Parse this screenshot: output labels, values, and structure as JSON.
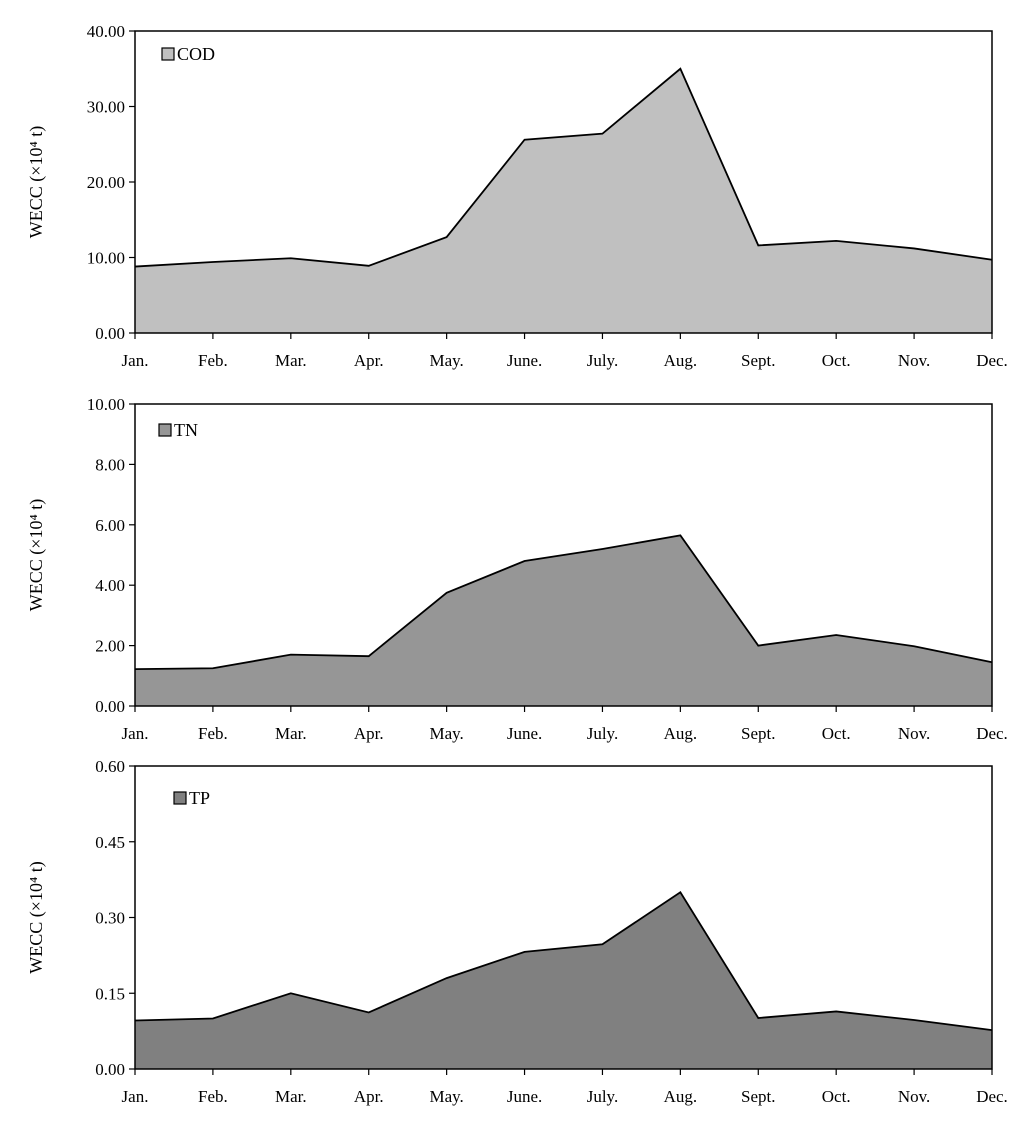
{
  "chart_data": [
    {
      "type": "area",
      "categories": [
        "Jan.",
        "Feb.",
        "Mar.",
        "Apr.",
        "May.",
        "June.",
        "July.",
        "Aug.",
        "Sept.",
        "Oct.",
        "Nov.",
        "Dec."
      ],
      "series": [
        {
          "name": "COD",
          "values": [
            8.8,
            9.4,
            9.9,
            8.9,
            12.7,
            25.6,
            26.4,
            35.0,
            11.6,
            12.2,
            11.2,
            9.7
          ],
          "color": "#c0c0c0"
        }
      ],
      "ylabel": "WECC (×10⁴ t)",
      "ylim": [
        0,
        40
      ],
      "yticks": [
        "0.00",
        "10.00",
        "20.00",
        "30.00",
        "40.00"
      ],
      "grid": false,
      "legend": "top-left"
    },
    {
      "type": "area",
      "categories": [
        "Jan.",
        "Feb.",
        "Mar.",
        "Apr.",
        "May.",
        "June.",
        "July.",
        "Aug.",
        "Sept.",
        "Oct.",
        "Nov.",
        "Dec."
      ],
      "series": [
        {
          "name": "TN",
          "values": [
            1.22,
            1.25,
            1.7,
            1.65,
            3.75,
            4.8,
            5.2,
            5.65,
            2.0,
            2.35,
            1.98,
            1.45
          ],
          "color": "#969696"
        }
      ],
      "ylabel": "WECC (×10⁴ t)",
      "ylim": [
        0,
        10
      ],
      "yticks": [
        "0.00",
        "2.00",
        "4.00",
        "6.00",
        "8.00",
        "10.00"
      ],
      "grid": false,
      "legend": "top-left"
    },
    {
      "type": "area",
      "categories": [
        "Jan.",
        "Feb.",
        "Mar.",
        "Apr.",
        "May.",
        "June.",
        "July.",
        "Aug.",
        "Sept.",
        "Oct.",
        "Nov.",
        "Dec."
      ],
      "series": [
        {
          "name": "TP",
          "values": [
            0.096,
            0.1,
            0.15,
            0.112,
            0.18,
            0.232,
            0.247,
            0.35,
            0.101,
            0.114,
            0.097,
            0.077
          ],
          "color": "#808080"
        }
      ],
      "ylabel": "WECC (×10⁴ t)",
      "ylim": [
        0,
        0.6
      ],
      "yticks": [
        "0.00",
        "0.15",
        "0.30",
        "0.45",
        "0.60"
      ],
      "grid": false,
      "legend": "top-left"
    }
  ]
}
